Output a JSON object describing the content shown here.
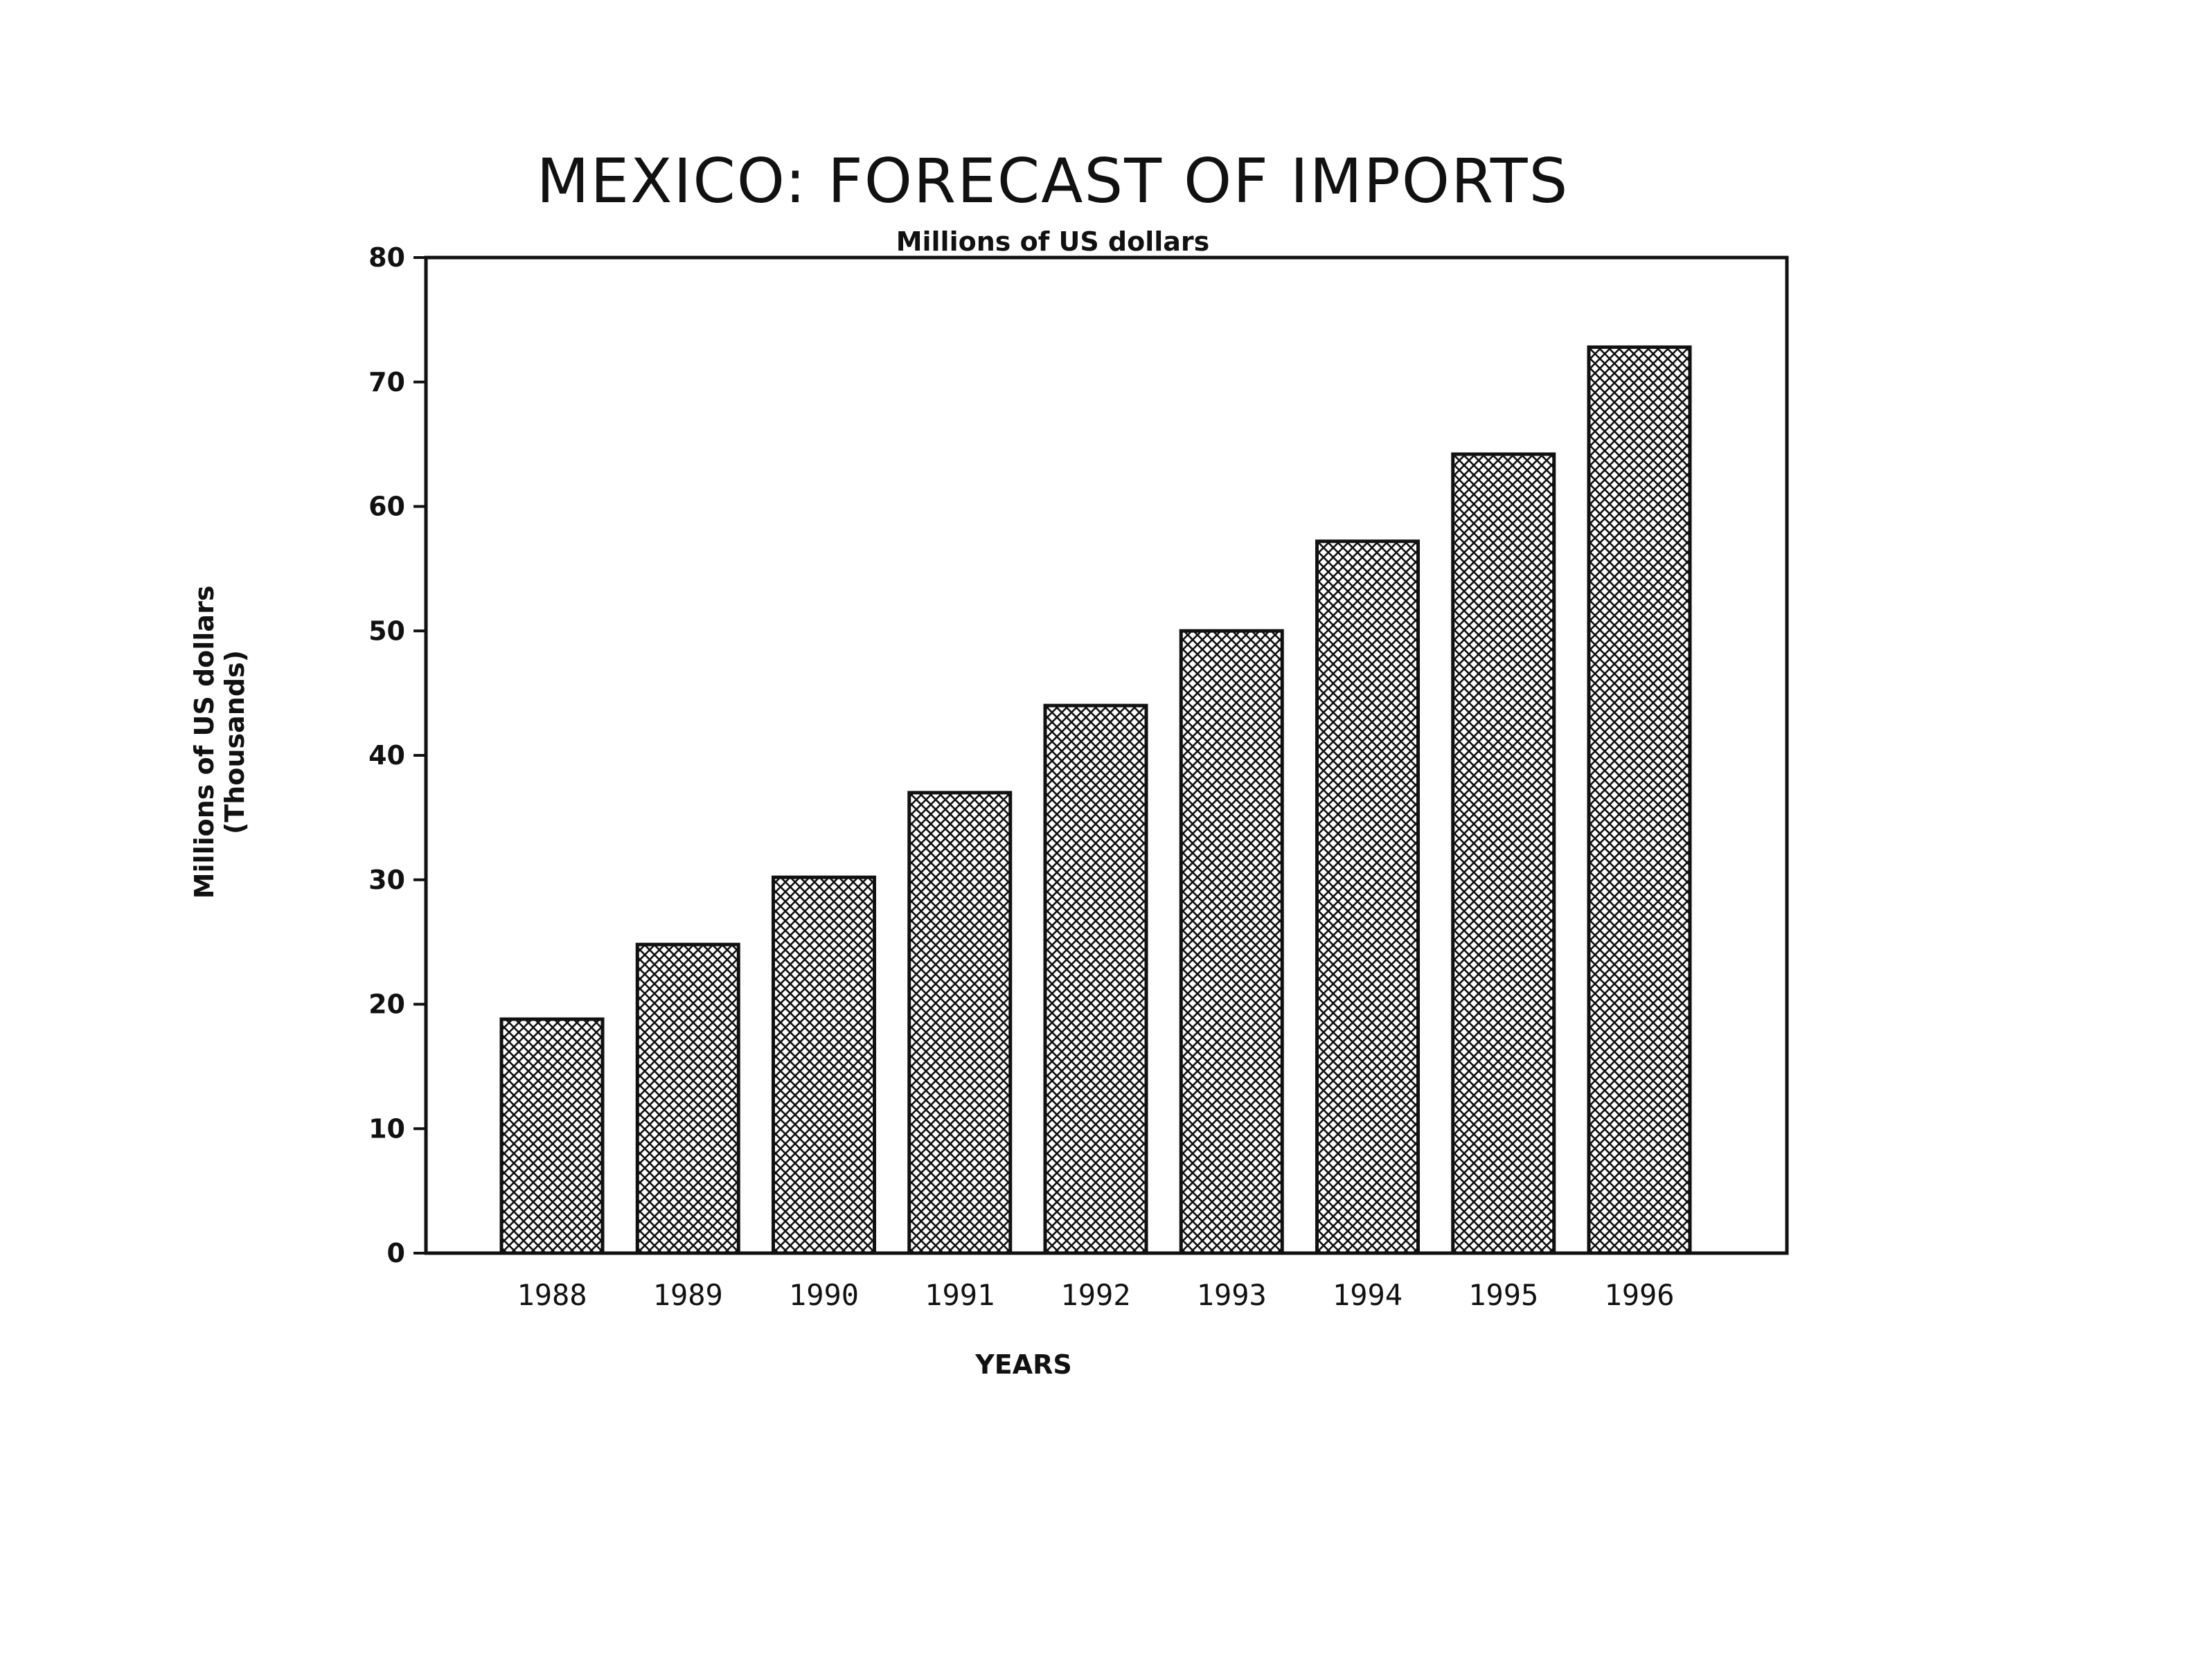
{
  "chart_data": {
    "type": "bar",
    "title": "MEXICO: FORECAST OF IMPORTS",
    "subtitle": "Millions of US dollars",
    "xlabel": "YEARS",
    "ylabel_line1": "Millions of US dollars",
    "ylabel_line2": "(Thousands)",
    "categories": [
      "1988",
      "1989",
      "1990",
      "1991",
      "1992",
      "1993",
      "1994",
      "1995",
      "1996"
    ],
    "values": [
      18.8,
      24.8,
      30.2,
      37.0,
      44.0,
      50.0,
      57.2,
      64.2,
      72.8
    ],
    "ylim": [
      0,
      80
    ],
    "yticks": [
      0,
      10,
      20,
      30,
      40,
      50,
      60,
      70,
      80
    ],
    "grid": false,
    "legend": "none",
    "bar_pattern": "crosshatch",
    "colors": {
      "ink": "#111111",
      "background": "#ffffff"
    }
  }
}
